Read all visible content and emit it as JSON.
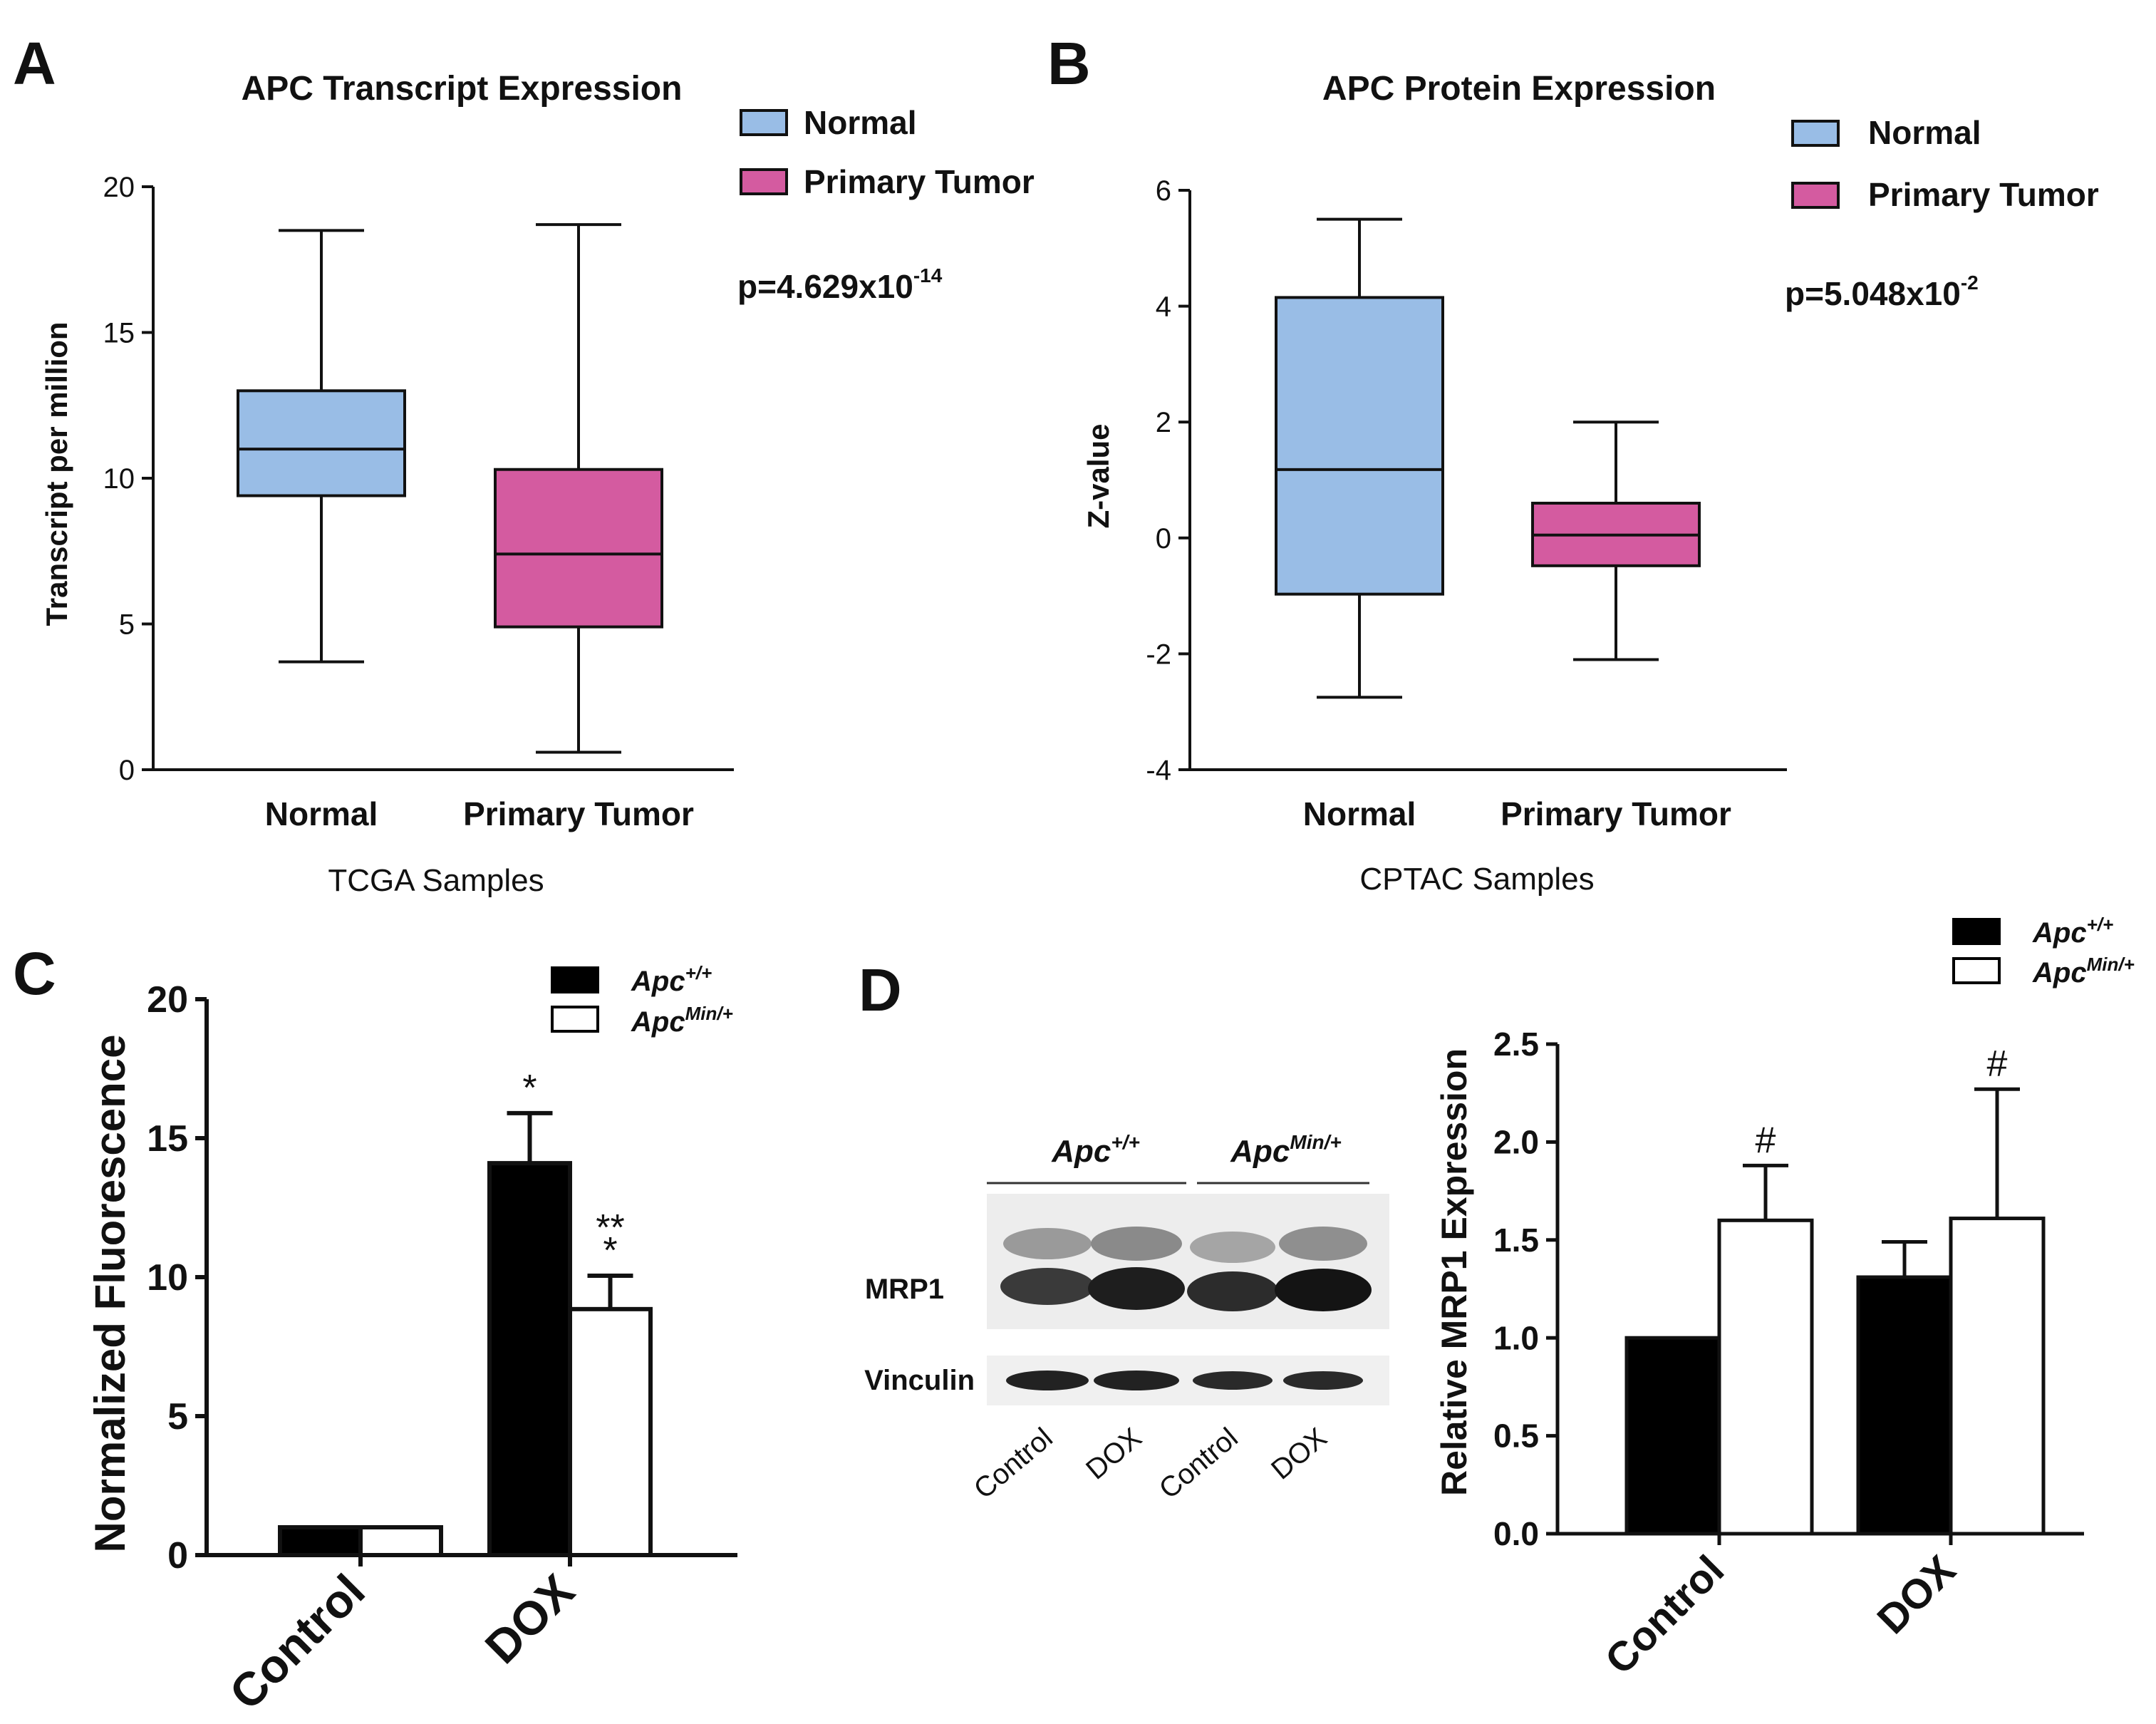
{
  "colors": {
    "normal": "#99bde6",
    "tumor": "#d45ba0",
    "black": "#000000",
    "white": "#ffffff"
  },
  "panels": {
    "A": {
      "letter": "A",
      "p_main": "p=4.629x10",
      "p_exp": "-14"
    },
    "B": {
      "letter": "B",
      "p_main": "p=5.048x10",
      "p_exp": "-2"
    },
    "C": {
      "letter": "C"
    },
    "D": {
      "letter": "D"
    }
  },
  "legend_box": {
    "normal": "Normal",
    "tumor": "Primary Tumor"
  },
  "legend_bar": {
    "base": "Apc",
    "wt_sup": "+/+",
    "min_sup": "Min/+"
  },
  "blot": {
    "group1_base": "Apc",
    "group1_sup": "+/+",
    "group2_base": "Apc",
    "group2_sup": "Min/+",
    "row1": "MRP1",
    "row2": "Vinculin",
    "lanes": [
      "Control",
      "DOX",
      "Control",
      "DOX"
    ]
  },
  "chart_data": [
    {
      "id": "A",
      "type": "boxplot",
      "title": "APC Transcript Expression",
      "xlabel": "TCGA  Samples",
      "ylabel": "Transcript per million",
      "ylim": [
        0,
        20
      ],
      "yticks": [
        0,
        5,
        10,
        15,
        20
      ],
      "categories": [
        "Normal",
        "Primary Tumor"
      ],
      "boxes": [
        {
          "name": "Normal",
          "min": 3.7,
          "q1": 9.4,
          "median": 11.0,
          "q3": 13.0,
          "max": 18.5
        },
        {
          "name": "Primary Tumor",
          "min": 0.6,
          "q1": 4.9,
          "median": 7.4,
          "q3": 10.3,
          "max": 18.7
        }
      ],
      "legend": [
        "Normal",
        "Primary Tumor"
      ],
      "annotation": "p=4.629x10-14"
    },
    {
      "id": "B",
      "type": "boxplot",
      "title": "APC Protein Expression",
      "xlabel": "CPTAC Samples",
      "ylabel": "Z-value",
      "ylim": [
        -4,
        6
      ],
      "yticks": [
        -4,
        -2,
        0,
        2,
        4,
        6
      ],
      "categories": [
        "Normal",
        "Primary Tumor"
      ],
      "boxes": [
        {
          "name": "Normal",
          "min": -2.75,
          "q1": -0.97,
          "median": 1.18,
          "q3": 4.15,
          "max": 5.5
        },
        {
          "name": "Primary Tumor",
          "min": -2.1,
          "q1": -0.48,
          "median": 0.05,
          "q3": 0.6,
          "max": 2.0
        }
      ],
      "legend": [
        "Normal",
        "Primary Tumor"
      ],
      "annotation": "p=5.048x10-2"
    },
    {
      "id": "C",
      "type": "bar",
      "ylabel": "Normalized Fluorescence",
      "ylim": [
        0,
        20
      ],
      "yticks": [
        0,
        5,
        10,
        15,
        20
      ],
      "categories": [
        "Control",
        "DOX"
      ],
      "series": [
        {
          "name": "Apc+/+",
          "values": [
            1.0,
            14.1
          ],
          "errors": [
            0,
            1.8
          ]
        },
        {
          "name": "ApcMin/+",
          "values": [
            1.0,
            8.85
          ],
          "errors": [
            0,
            1.2
          ]
        }
      ],
      "annotations": [
        {
          "category": "DOX",
          "series": 0,
          "lines": [
            "*"
          ]
        },
        {
          "category": "DOX",
          "series": 1,
          "lines": [
            "**",
            "*"
          ]
        }
      ]
    },
    {
      "id": "D",
      "type": "bar",
      "ylabel": "Relative MRP1 Expression",
      "ylim": [
        0,
        2.5
      ],
      "yticks": [
        "0.0",
        "0.5",
        "1.0",
        "1.5",
        "2.0",
        "2.5"
      ],
      "categories": [
        "Control",
        "DOX"
      ],
      "series": [
        {
          "name": "Apc+/+",
          "values": [
            1.0,
            1.31
          ],
          "errors": [
            0,
            0.18
          ]
        },
        {
          "name": "ApcMin/+",
          "values": [
            1.6,
            1.61
          ],
          "errors": [
            0.28,
            0.66
          ]
        }
      ],
      "annotations": [
        {
          "category": "Control",
          "series": 1,
          "lines": [
            "#"
          ]
        },
        {
          "category": "DOX",
          "series": 1,
          "lines": [
            "#"
          ]
        }
      ]
    }
  ]
}
